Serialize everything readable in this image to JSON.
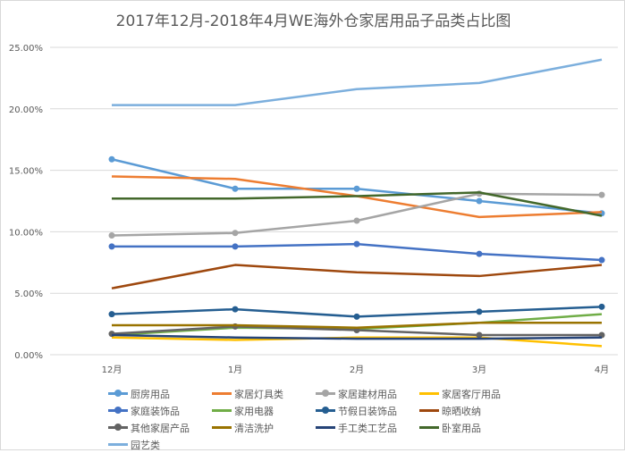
{
  "chart_data": {
    "type": "line",
    "title": "2017年12月-2018年4月WE海外仓家居用品子品类占比图",
    "categories": [
      "12月",
      "1月",
      "2月",
      "3月",
      "4月"
    ],
    "ylim": [
      0,
      25
    ],
    "yticks": [
      "0.00%",
      "5.00%",
      "10.00%",
      "15.00%",
      "20.00%",
      "25.00%"
    ],
    "grid": true,
    "legend_position": "bottom",
    "series": [
      {
        "name": "厨房用品",
        "color": "#5b9bd5",
        "marker": true,
        "values": [
          15.9,
          13.5,
          13.5,
          12.5,
          11.5
        ]
      },
      {
        "name": "家居灯具类",
        "color": "#ed7d31",
        "marker": false,
        "values": [
          14.5,
          14.3,
          12.9,
          11.2,
          11.6
        ]
      },
      {
        "name": "家居建材用品",
        "color": "#a5a5a5",
        "marker": true,
        "values": [
          9.7,
          9.9,
          10.9,
          13.1,
          13.0
        ]
      },
      {
        "name": "家居客厅用品",
        "color": "#ffc000",
        "marker": false,
        "values": [
          1.4,
          1.2,
          1.4,
          1.4,
          0.7
        ]
      },
      {
        "name": "家庭装饰品",
        "color": "#4472c4",
        "marker": true,
        "values": [
          8.8,
          8.8,
          9.0,
          8.2,
          7.7
        ]
      },
      {
        "name": "家用电器",
        "color": "#70ad47",
        "marker": false,
        "values": [
          1.6,
          2.2,
          2.1,
          2.6,
          3.3
        ]
      },
      {
        "name": "节假日装饰品",
        "color": "#255e91",
        "marker": true,
        "values": [
          3.3,
          3.7,
          3.1,
          3.5,
          3.9
        ]
      },
      {
        "name": "晾晒收纳",
        "color": "#9e480e",
        "marker": false,
        "values": [
          5.4,
          7.3,
          6.7,
          6.4,
          7.3
        ]
      },
      {
        "name": "其他家居产品",
        "color": "#636363",
        "marker": true,
        "values": [
          1.7,
          2.3,
          2.0,
          1.6,
          1.6
        ]
      },
      {
        "name": "清洁洗护",
        "color": "#997300",
        "marker": false,
        "values": [
          2.4,
          2.4,
          2.2,
          2.6,
          2.6
        ]
      },
      {
        "name": "手工类工艺品",
        "color": "#264478",
        "marker": false,
        "values": [
          1.6,
          1.4,
          1.3,
          1.3,
          1.4
        ]
      },
      {
        "name": "卧室用品",
        "color": "#43682b",
        "marker": false,
        "values": [
          12.7,
          12.7,
          12.9,
          13.2,
          11.3
        ]
      },
      {
        "name": "园艺类",
        "color": "#7cafdd",
        "marker": false,
        "values": [
          20.3,
          20.3,
          21.6,
          22.1,
          24.0
        ]
      }
    ]
  }
}
